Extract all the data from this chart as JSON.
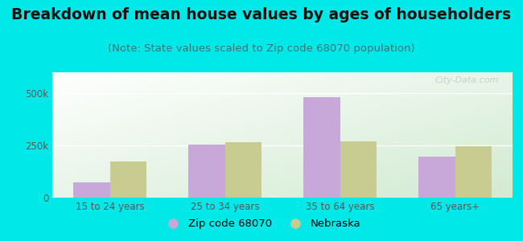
{
  "title": "Breakdown of mean house values by ages of householders",
  "subtitle": "(Note: State values scaled to Zip code 68070 population)",
  "categories": [
    "15 to 24 years",
    "25 to 34 years",
    "35 to 64 years",
    "65 years+"
  ],
  "zip_values": [
    75000,
    255000,
    480000,
    195000
  ],
  "state_values": [
    175000,
    265000,
    270000,
    245000
  ],
  "zip_color": "#c8a8d8",
  "state_color": "#c8cc90",
  "background_outer": "#00e8e8",
  "ylim": [
    0,
    600000
  ],
  "yticks": [
    0,
    250000,
    500000
  ],
  "ytick_labels": [
    "0",
    "250k",
    "500k"
  ],
  "legend_zip_label": "Zip code 68070",
  "legend_state_label": "Nebraska",
  "bar_width": 0.32,
  "title_fontsize": 13.5,
  "subtitle_fontsize": 9.5,
  "tick_fontsize": 8.5,
  "legend_fontsize": 9.5
}
